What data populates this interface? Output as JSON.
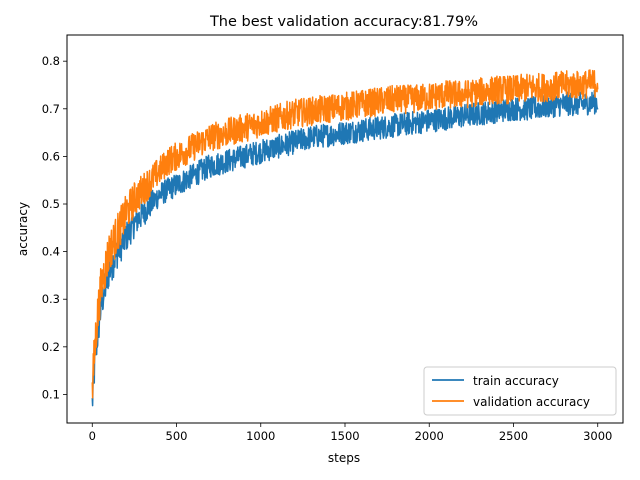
{
  "chart_data": {
    "type": "line",
    "title": "The best validation accuracy:81.79%",
    "xlabel": "steps",
    "ylabel": "accuracy",
    "xlim": [
      -150,
      3150
    ],
    "ylim": [
      0.04,
      0.855
    ],
    "xticks": [
      0,
      500,
      1000,
      1500,
      2000,
      2500,
      3000
    ],
    "yticks": [
      0.1,
      0.2,
      0.3,
      0.4,
      0.5,
      0.6,
      0.7,
      0.8
    ],
    "grid": false,
    "legend_position": "lower right",
    "series": [
      {
        "name": "train accuracy",
        "color": "#1f77b4",
        "x": [
          0,
          10,
          20,
          30,
          40,
          50,
          60,
          80,
          100,
          125,
          150,
          200,
          250,
          300,
          350,
          400,
          450,
          500,
          600,
          700,
          800,
          900,
          1000,
          1100,
          1200,
          1300,
          1400,
          1500,
          1600,
          1700,
          1800,
          1900,
          2000,
          2100,
          2200,
          2300,
          2400,
          2500,
          2600,
          2700,
          2800,
          2900,
          3000
        ],
        "y": [
          0.08,
          0.14,
          0.19,
          0.22,
          0.25,
          0.28,
          0.3,
          0.33,
          0.36,
          0.38,
          0.4,
          0.43,
          0.46,
          0.48,
          0.5,
          0.52,
          0.53,
          0.54,
          0.56,
          0.58,
          0.59,
          0.6,
          0.61,
          0.62,
          0.63,
          0.64,
          0.645,
          0.65,
          0.655,
          0.66,
          0.665,
          0.67,
          0.675,
          0.68,
          0.685,
          0.69,
          0.695,
          0.7,
          0.7,
          0.705,
          0.71,
          0.71,
          0.715
        ],
        "noise": 0.025
      },
      {
        "name": "validation accuracy",
        "color": "#ff7f0e",
        "x": [
          0,
          10,
          20,
          30,
          40,
          50,
          60,
          80,
          100,
          125,
          150,
          200,
          250,
          300,
          350,
          400,
          450,
          500,
          600,
          700,
          800,
          900,
          1000,
          1100,
          1200,
          1300,
          1400,
          1500,
          1600,
          1700,
          1800,
          1900,
          2000,
          2100,
          2200,
          2300,
          2400,
          2500,
          2600,
          2700,
          2800,
          2900,
          3000
        ],
        "y": [
          0.1,
          0.17,
          0.22,
          0.26,
          0.29,
          0.32,
          0.34,
          0.37,
          0.4,
          0.42,
          0.44,
          0.48,
          0.51,
          0.53,
          0.55,
          0.57,
          0.59,
          0.6,
          0.62,
          0.64,
          0.65,
          0.66,
          0.67,
          0.68,
          0.69,
          0.695,
          0.7,
          0.705,
          0.71,
          0.715,
          0.72,
          0.72,
          0.725,
          0.73,
          0.73,
          0.735,
          0.74,
          0.74,
          0.745,
          0.745,
          0.75,
          0.75,
          0.755
        ],
        "noise": 0.03
      }
    ]
  }
}
